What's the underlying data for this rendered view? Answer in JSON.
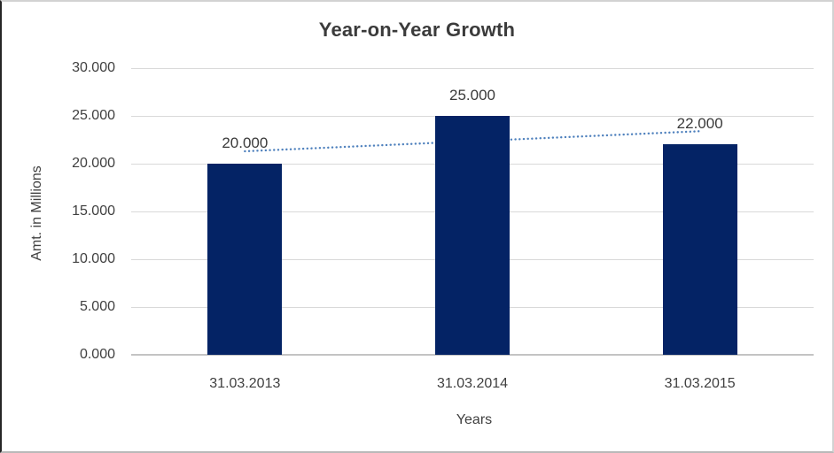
{
  "chart_data": {
    "type": "bar",
    "title": "Year-on-Year Growth",
    "categories": [
      "31.03.2013",
      "31.03.2014",
      "31.03.2015"
    ],
    "values": [
      20,
      25,
      22
    ],
    "data_labels": [
      "20.000",
      "25.000",
      "22.000"
    ],
    "xlabel": "Years",
    "ylabel": "Amt. in Millions",
    "ylim": [
      0,
      30
    ],
    "ytick_step": 5,
    "ytick_labels": [
      "0.000",
      "5.000",
      "10.000",
      "15.000",
      "20.000",
      "25.000",
      "30.000"
    ],
    "grid": true,
    "legend": "none",
    "bar_color": "#042365",
    "trendline": {
      "type": "linear",
      "style": "dotted",
      "color": "#4f81bd",
      "start_value": 21.3,
      "end_value": 23.4
    },
    "text_color": "#404040",
    "gridline_color": "#d9d9d9"
  }
}
